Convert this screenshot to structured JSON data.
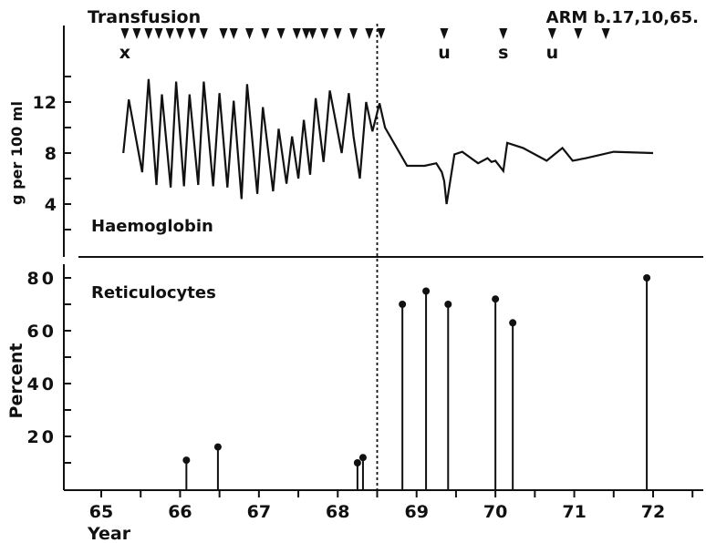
{
  "chart_data": [
    {
      "type": "line",
      "title": "Haemoglobin",
      "header_left": "Transfusion",
      "header_right": "ARM b.17,10,65.",
      "ylabel": "g per 100 ml",
      "ylim": [
        0,
        16
      ],
      "y_ticks": [
        4,
        8,
        12
      ],
      "y_tick_labels": [
        "4",
        "8",
        "12"
      ],
      "x_range": [
        65,
        72.5
      ],
      "transfusion_x": [
        65.3,
        65.45,
        65.6,
        65.73,
        65.87,
        66.0,
        66.15,
        66.3,
        66.55,
        66.68,
        66.88,
        67.08,
        67.28,
        67.48,
        67.6,
        67.68,
        67.83,
        68.0,
        68.2,
        68.4,
        68.55
      ],
      "markers": [
        {
          "x": 65.3,
          "label": "x"
        },
        {
          "x": 69.35,
          "label": "u"
        },
        {
          "x": 70.1,
          "label": "s"
        },
        {
          "x": 70.72,
          "label": "u"
        },
        {
          "x": 71.05,
          "label": ""
        },
        {
          "x": 71.4,
          "label": ""
        }
      ],
      "divider_x": 68.5,
      "series": [
        {
          "x": [
            65.28,
            65.35,
            65.52,
            65.6,
            65.7,
            65.77,
            65.88,
            65.95,
            66.05,
            66.12,
            66.23,
            66.3,
            66.42,
            66.5,
            66.6,
            66.68,
            66.78,
            66.85,
            66.98,
            67.05,
            67.18,
            67.25,
            67.35,
            67.42,
            67.5,
            67.57,
            67.65,
            67.72,
            67.82,
            67.9,
            68.05,
            68.14,
            68.2,
            68.28,
            68.36,
            68.44,
            68.53,
            68.6,
            68.88,
            69.1,
            69.25,
            69.32,
            69.35,
            69.38,
            69.48,
            69.58,
            69.78,
            69.9,
            69.95,
            70.0,
            70.1,
            70.15,
            70.35,
            70.65,
            70.85,
            70.98,
            71.15,
            71.5,
            72.0
          ],
          "y": [
            8.0,
            12.2,
            6.5,
            13.8,
            5.5,
            12.6,
            5.3,
            13.6,
            5.4,
            12.6,
            5.5,
            13.6,
            5.4,
            12.7,
            5.3,
            12.1,
            4.4,
            13.4,
            4.8,
            11.6,
            5.0,
            9.9,
            5.6,
            9.3,
            6.0,
            10.6,
            6.3,
            12.3,
            7.3,
            12.9,
            8.0,
            12.7,
            9.3,
            6.0,
            12.0,
            9.7,
            11.9,
            10.0,
            7.0,
            7.0,
            7.2,
            6.5,
            5.8,
            4.0,
            7.9,
            8.1,
            7.2,
            7.6,
            7.3,
            7.4,
            6.6,
            8.8,
            8.4,
            7.4,
            8.4,
            7.4,
            7.6,
            8.1,
            8.0
          ]
        }
      ]
    },
    {
      "type": "bar",
      "title": "Reticulocytes",
      "xlabel": "Year",
      "ylabel": "Percent",
      "ylim": [
        0,
        85
      ],
      "y_ticks": [
        20,
        40,
        60,
        80
      ],
      "y_tick_labels": [
        "20",
        "40",
        "60",
        "80"
      ],
      "x_ticks": [
        65,
        66,
        67,
        68,
        69,
        70,
        71,
        72
      ],
      "x_tick_labels": [
        "65",
        "66",
        "67",
        "68",
        "69",
        "70",
        "71",
        "72"
      ],
      "x_range": [
        65,
        72.5
      ],
      "divider_x": 68.5,
      "x": [
        66.08,
        66.48,
        68.25,
        68.32,
        68.82,
        69.12,
        69.4,
        70.0,
        70.22,
        71.92
      ],
      "values": [
        11,
        16,
        10,
        12,
        70,
        75,
        70,
        72,
        63,
        80
      ]
    }
  ]
}
